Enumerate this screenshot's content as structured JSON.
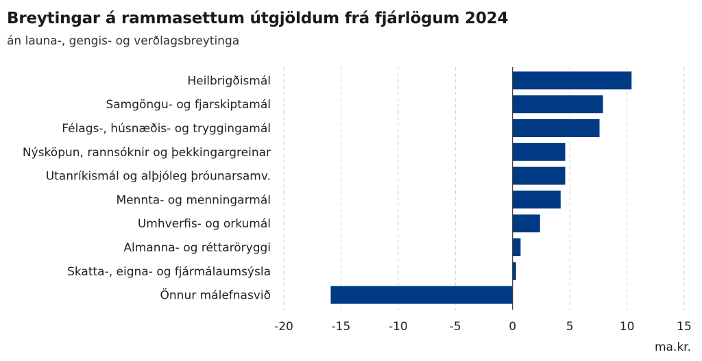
{
  "chart_data": {
    "type": "bar",
    "orientation": "horizontal",
    "title": "Breytingar á rammasettum útgjöldum frá fjárlögum 2024",
    "subtitle": "án launa-, gengis- og verðlagsbreytinga",
    "unit": "ma.kr.",
    "categories": [
      "Heilbrigðismál",
      "Samgöngu- og fjarskiptamál",
      "Félags-, húsnæðis- og tryggingamál",
      "Nýsköpun, rannsóknir og þekkingargreinar",
      "Utanríkismál og alþjóleg þróunarsamv.",
      "Mennta- og menningarmál",
      "Umhverfis- og orkumál",
      "Almanna- og réttaröryggi",
      "Skatta-, eigna- og fjármálaumsýsla",
      "Önnur málefnasvið"
    ],
    "values": [
      10.4,
      7.9,
      7.6,
      4.6,
      4.6,
      4.2,
      2.4,
      0.7,
      0.3,
      -15.9
    ],
    "xlim": [
      -20,
      15
    ],
    "xticks": [
      -20,
      -15,
      -10,
      -5,
      0,
      5,
      10,
      15
    ],
    "grid": "vertical dashed",
    "legend": "none",
    "bar_color": "#003a84",
    "grid_color": "#d0d0d0",
    "axis_color": "#333333"
  }
}
